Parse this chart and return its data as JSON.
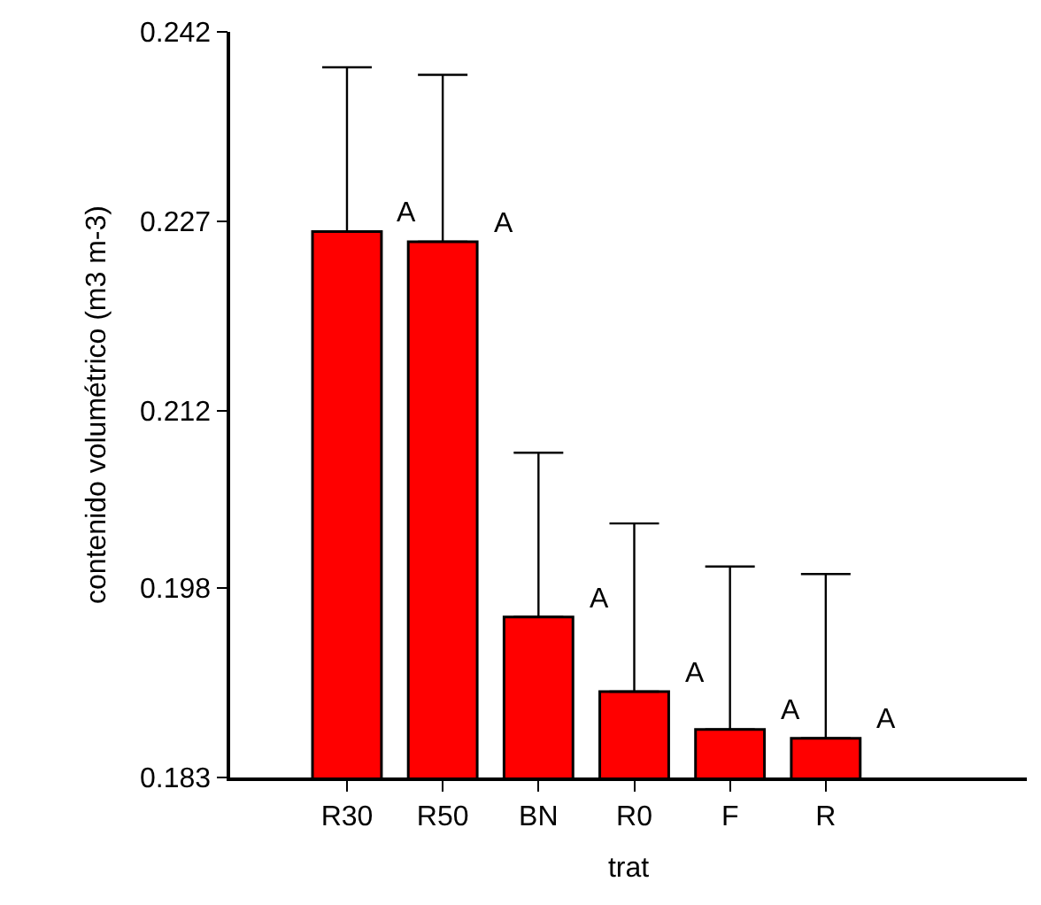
{
  "chart_data": {
    "type": "bar",
    "xlabel": "trat",
    "ylabel": "contenido volumétrico (m3 m-3)",
    "categories": [
      "R30",
      "R50",
      "BN",
      "R0",
      "F",
      "R"
    ],
    "values": [
      0.2262,
      0.2254,
      0.1957,
      0.1898,
      0.1868,
      0.1861
    ],
    "errors": [
      [
        0.2262,
        0.2392
      ],
      [
        0.2254,
        0.2386
      ],
      [
        0.1957,
        0.2087
      ],
      [
        0.1898,
        0.2031
      ],
      [
        0.1868,
        0.1997
      ],
      [
        0.1861,
        0.1991
      ]
    ],
    "color": "#ff0000",
    "ylim": [
      0.183,
      0.242
    ],
    "yticks": [
      0.183,
      0.198,
      0.212,
      0.227,
      0.242
    ],
    "annotations": [
      "A",
      "A",
      "A",
      "A",
      "A",
      "A"
    ]
  }
}
